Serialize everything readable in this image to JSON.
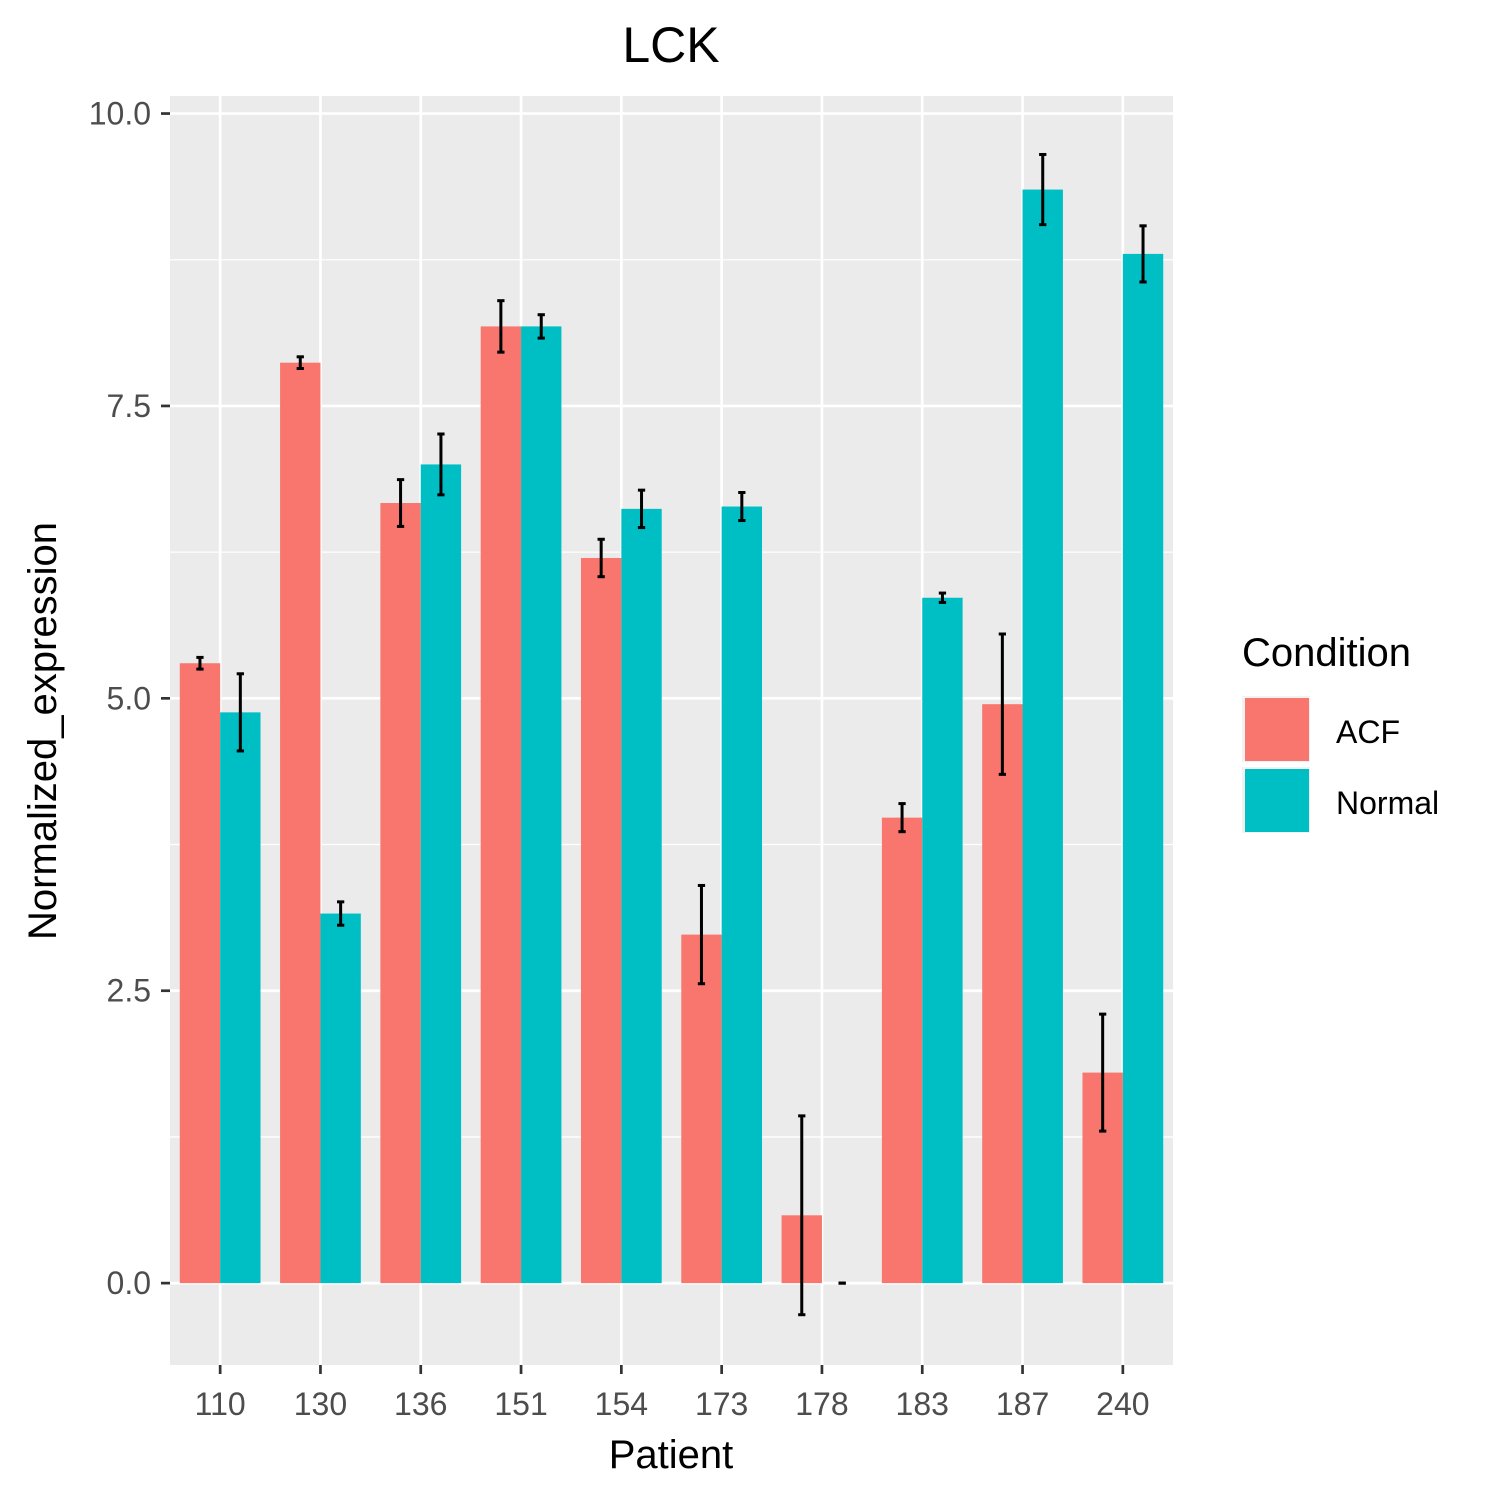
{
  "chart_data": {
    "type": "bar",
    "title": "LCK",
    "xlabel": "Patient",
    "ylabel": "Normalized_expression",
    "categories": [
      "110",
      "130",
      "136",
      "151",
      "154",
      "173",
      "178",
      "183",
      "187",
      "240"
    ],
    "series": [
      {
        "name": "ACF",
        "color": "#F8766D",
        "values": [
          5.3,
          7.87,
          6.67,
          8.18,
          6.2,
          2.98,
          0.58,
          3.98,
          4.95,
          1.8
        ],
        "errors": [
          0.05,
          0.05,
          0.2,
          0.22,
          0.16,
          0.42,
          0.85,
          0.12,
          0.6,
          0.5
        ]
      },
      {
        "name": "Normal",
        "color": "#00BFC4",
        "values": [
          4.88,
          3.16,
          7.0,
          8.18,
          6.62,
          6.64,
          0.0,
          5.86,
          9.35,
          8.8
        ],
        "errors": [
          0.33,
          0.1,
          0.26,
          0.1,
          0.16,
          0.12,
          0.0,
          0.04,
          0.3,
          0.24
        ]
      }
    ],
    "ylim": [
      -0.7,
      10.15
    ],
    "yticks": [
      0.0,
      2.5,
      5.0,
      7.5,
      10.0
    ],
    "ytick_labels": [
      "0.0",
      "2.5",
      "5.0",
      "7.5",
      "10.0"
    ],
    "grid": true,
    "legend": {
      "title": "Condition",
      "position": "right"
    }
  }
}
